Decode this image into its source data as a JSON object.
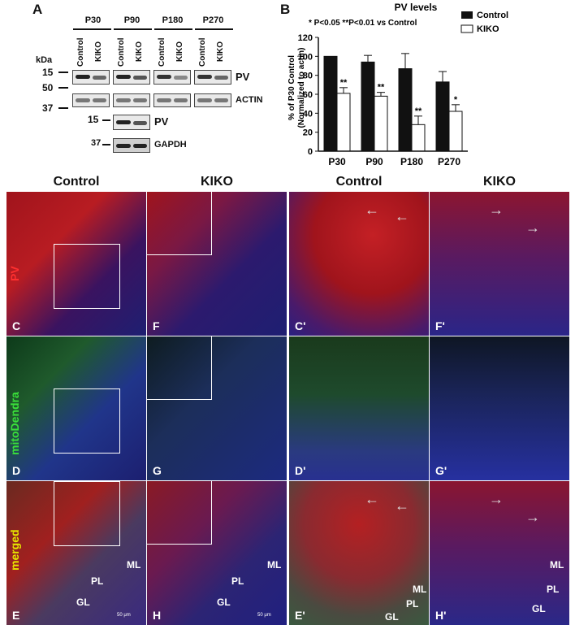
{
  "panel_a": {
    "letter": "A",
    "timepoints": [
      "P30",
      "P90",
      "P180",
      "P270"
    ],
    "lanes": [
      "Control",
      "KIKO"
    ],
    "kda_label": "kDa",
    "mw_top": [
      "15",
      "50",
      "37"
    ],
    "mw_bottom": [
      "15",
      "37"
    ],
    "labels": [
      "PV",
      "ACTIN",
      "PV",
      "GAPDH"
    ]
  },
  "chart_data": {
    "type": "bar",
    "letter": "B",
    "title": "PV levels",
    "annotation": "* P<0.05 **P<0.01 vs Control",
    "ylabel_line1": "% of P30 Control",
    "ylabel_line2": "(Normalized to actin)",
    "categories": [
      "P30",
      "P90",
      "P180",
      "P270"
    ],
    "ylim": [
      0,
      120
    ],
    "yticks": [
      "0",
      "20",
      "40",
      "60",
      "80",
      "100",
      "120"
    ],
    "series": [
      {
        "name": "Control",
        "color": "#111111",
        "values": [
          100,
          94,
          87,
          73
        ],
        "errors": [
          0,
          7,
          16,
          11
        ]
      },
      {
        "name": "KIKO",
        "color": "#ffffff",
        "values": [
          61,
          58,
          28,
          42
        ],
        "errors": [
          6,
          4,
          9,
          7
        ]
      }
    ],
    "significance": [
      "**",
      "**",
      "**",
      "*"
    ],
    "legend": "top-right"
  },
  "grid": {
    "columns": [
      "Control",
      "KIKO",
      "Control",
      "KIKO"
    ],
    "channels": [
      "PV",
      "mitoDendra",
      "merged"
    ],
    "panels": [
      [
        "C",
        "F",
        "C'",
        "F'"
      ],
      [
        "D",
        "G",
        "D'",
        "G'"
      ],
      [
        "E",
        "H",
        "E'",
        "H'"
      ]
    ],
    "layers": {
      "ml": "ML",
      "pl": "PL",
      "gl": "GL"
    },
    "arrow": "←",
    "arrow_right": "→",
    "scale": "50 μm",
    "colors": {
      "pv": "#ff2a2a",
      "mito": "#33dd33",
      "merged": "#e6e600"
    }
  }
}
